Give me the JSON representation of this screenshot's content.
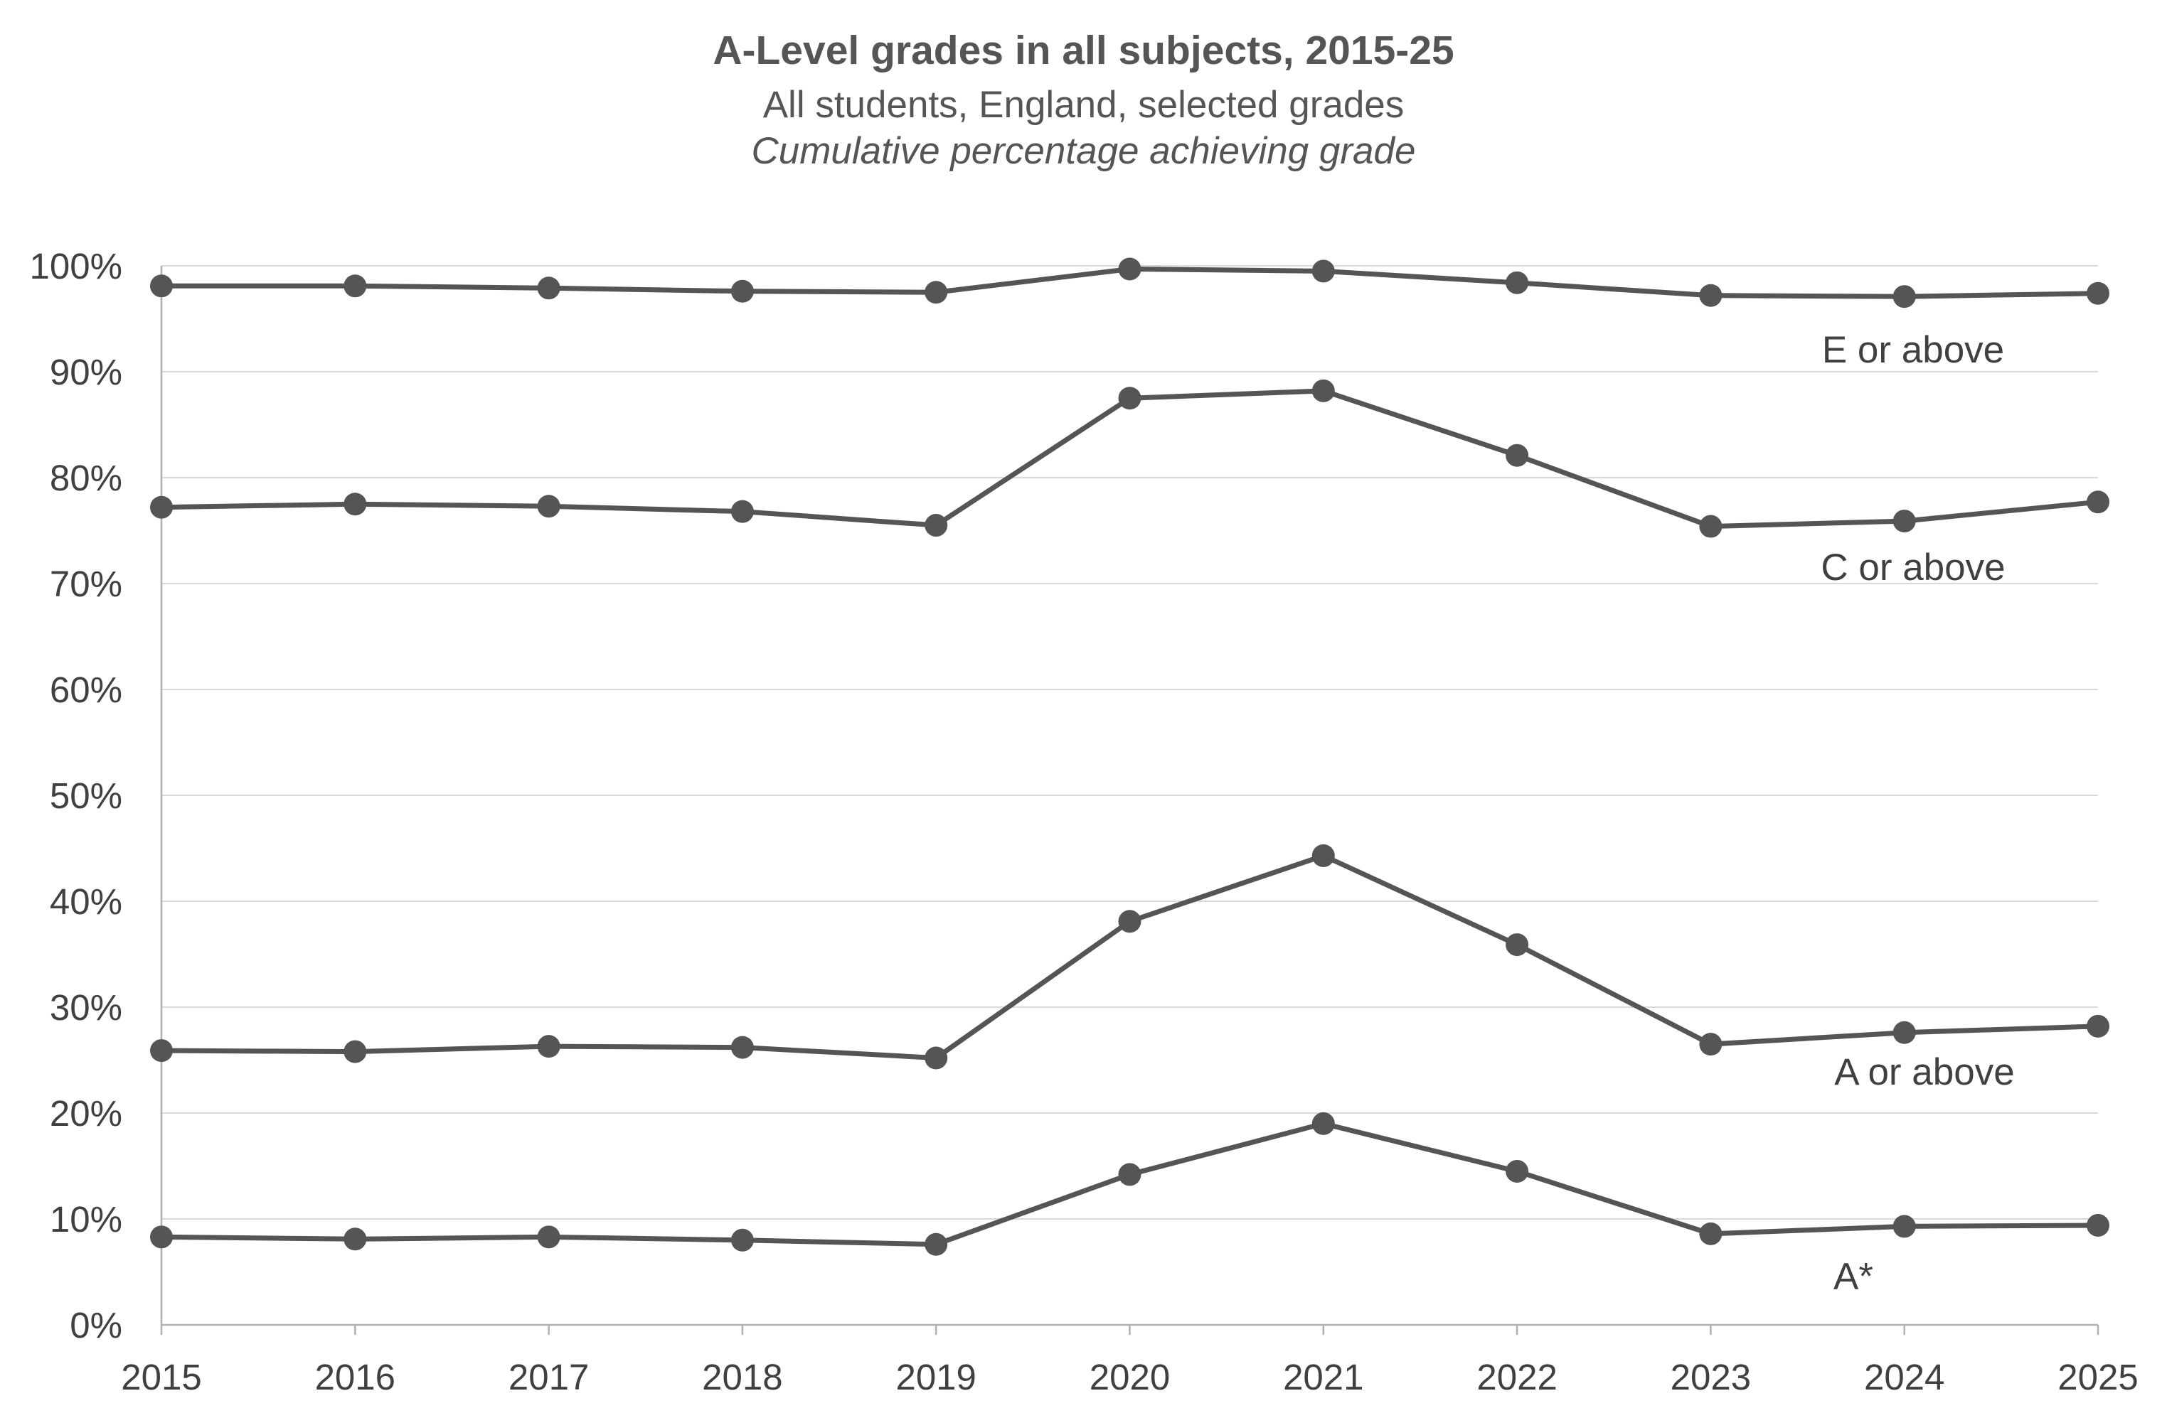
{
  "chart_data": {
    "type": "line",
    "title": "A-Level grades in all subjects, 2015-25",
    "subtitle": "All students, England, selected grades",
    "subtitle2": "Cumulative percentage achieving grade",
    "xlabel": "",
    "ylabel": "",
    "x": [
      "2015",
      "2016",
      "2017",
      "2018",
      "2019",
      "2020",
      "2021",
      "2022",
      "2023",
      "2024",
      "2025"
    ],
    "ylim": [
      0,
      100
    ],
    "yticks": [
      "0%",
      "10%",
      "20%",
      "30%",
      "40%",
      "50%",
      "60%",
      "70%",
      "80%",
      "90%",
      "100%"
    ],
    "grid": true,
    "series": [
      {
        "name": "E or above",
        "values": [
          98.1,
          98.1,
          97.9,
          97.6,
          97.5,
          99.7,
          99.5,
          98.4,
          97.2,
          97.1,
          97.4
        ]
      },
      {
        "name": "C or above",
        "values": [
          77.2,
          77.5,
          77.3,
          76.8,
          75.5,
          87.5,
          88.2,
          82.1,
          75.4,
          75.9,
          77.7
        ]
      },
      {
        "name": "A or above",
        "values": [
          25.9,
          25.8,
          26.3,
          26.2,
          25.2,
          38.1,
          44.3,
          35.9,
          26.5,
          27.6,
          28.2
        ]
      },
      {
        "name": "A*",
        "values": [
          8.3,
          8.1,
          8.3,
          8.0,
          7.6,
          14.2,
          19.0,
          14.5,
          8.6,
          9.3,
          9.4
        ]
      }
    ],
    "colors": {
      "line": "#555555",
      "grid": "#d9d9d9",
      "axis": "#b0b0b0"
    }
  }
}
